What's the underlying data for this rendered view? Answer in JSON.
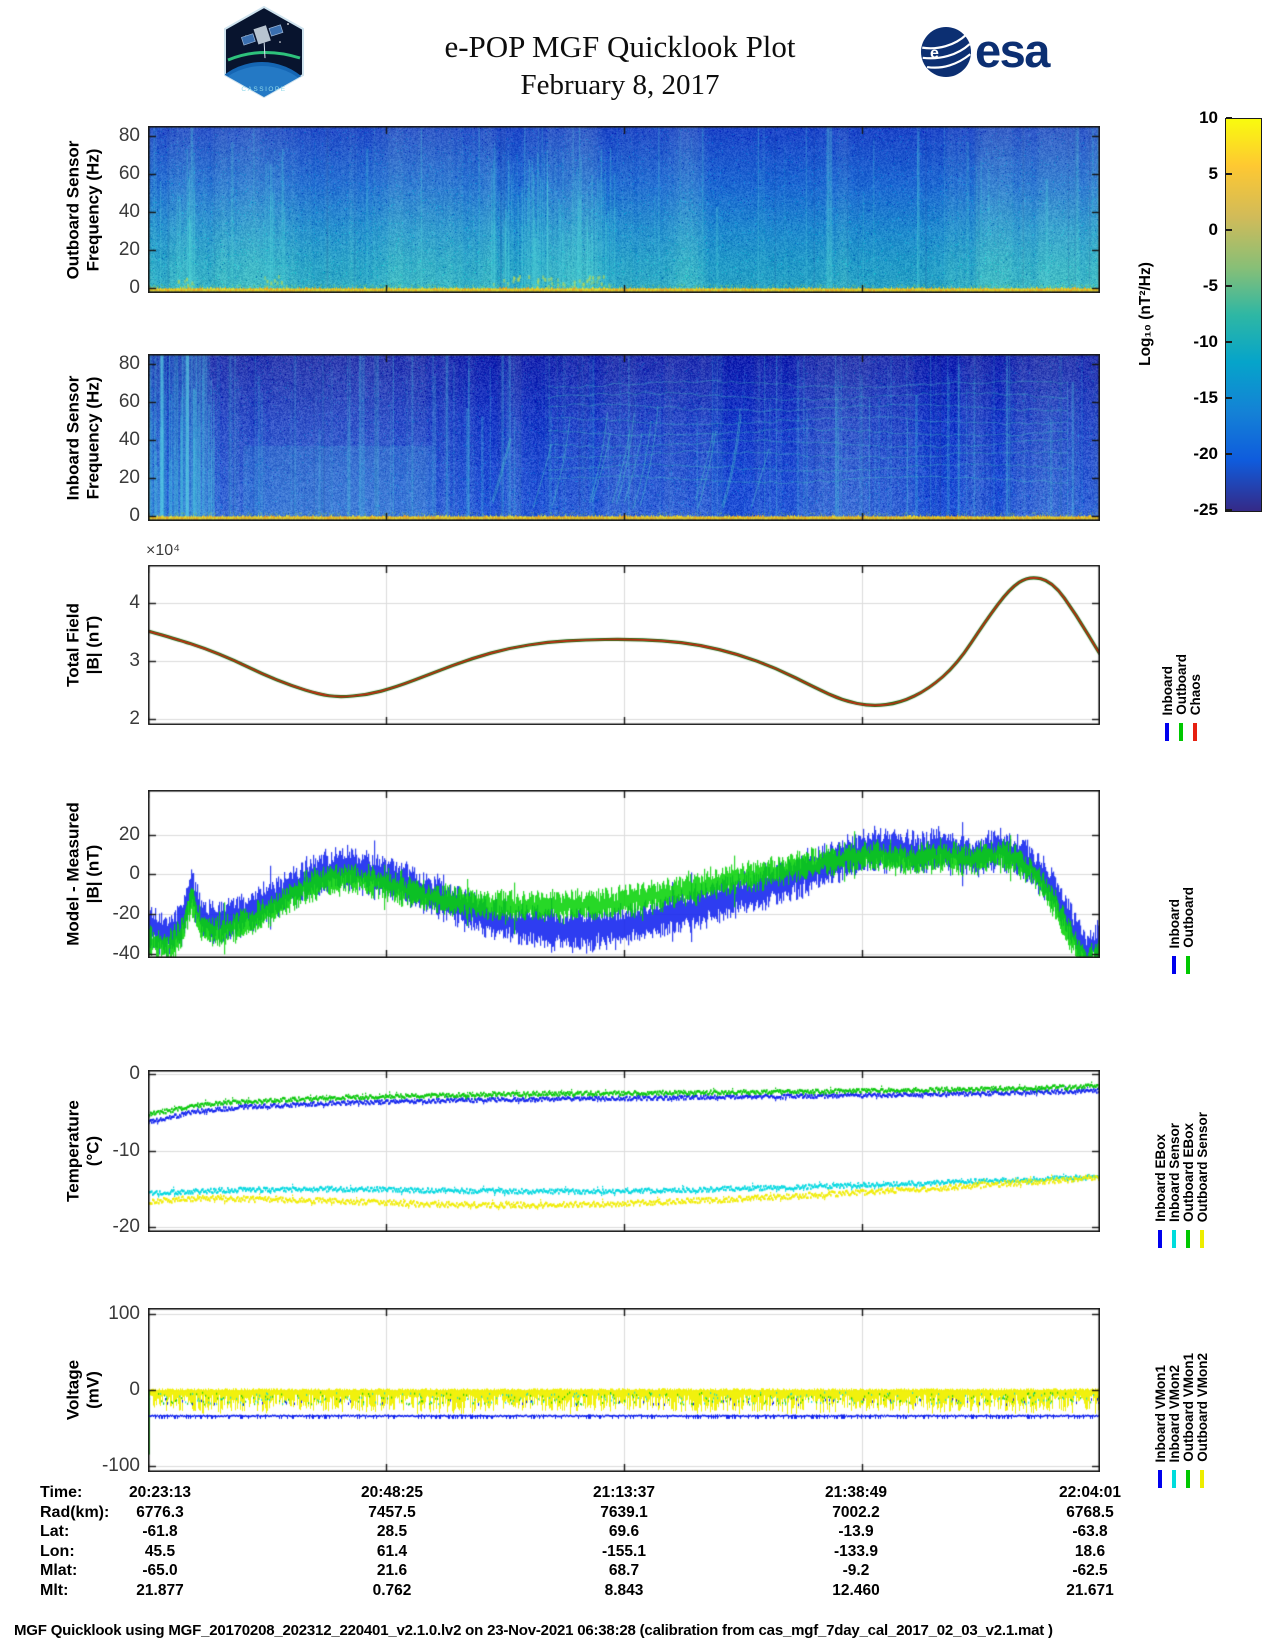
{
  "header": {
    "title": "e-POP MGF Quicklook Plot",
    "date": "February 8, 2017",
    "cassiope_badge": "CASSIOPE",
    "esa_logo_text": "esa"
  },
  "colorbar": {
    "label": "Log₁₀ (nT²/Hz)",
    "tick_labels": [
      "10",
      "5",
      "0",
      "-5",
      "-10",
      "-15",
      "-20",
      "-25"
    ],
    "tick_values": [
      10,
      5,
      0,
      -5,
      -10,
      -15,
      -20,
      -25
    ],
    "clim": [
      -25,
      10
    ],
    "gradient_stops": [
      [
        0,
        "#352a87"
      ],
      [
        0.13,
        "#0f5cdd"
      ],
      [
        0.25,
        "#1481d6"
      ],
      [
        0.38,
        "#06a4ca"
      ],
      [
        0.5,
        "#2eb7a4"
      ],
      [
        0.62,
        "#87bf77"
      ],
      [
        0.75,
        "#d1bb59"
      ],
      [
        0.88,
        "#fec832"
      ],
      [
        1,
        "#f9fb0e"
      ]
    ]
  },
  "x_axis": {
    "tick_labels": [
      "20:23:13",
      "20:48:25",
      "21:13:37",
      "21:38:49",
      "22:04:01"
    ]
  },
  "chart_data": [
    {
      "id": "outboard-spectrogram",
      "type": "heatmap",
      "ylabel_lines": [
        "Outboard Sensor",
        "Frequency (Hz)"
      ],
      "yticks": [
        0,
        20,
        40,
        60,
        80
      ],
      "ytick_labels": [
        "0",
        "20",
        "40",
        "60",
        "80"
      ],
      "ylim": [
        -2.5,
        85
      ],
      "clim": [
        -25,
        10
      ],
      "value_label": "Log₁₀ (nT²/Hz)",
      "description": "Broadband blue-teal noise floor near -12 to -8 log(nT²/Hz); intense yellow-orange band below ~3 Hz for whole pass; burst clusters near 20:25, 20:29 and 21:05-21:15",
      "render": {
        "gradient": [
          [
            0,
            "#2b52c8"
          ],
          [
            0.35,
            "#2c76d2"
          ],
          [
            0.62,
            "#2e97ce"
          ],
          [
            0.82,
            "#31a8c8"
          ],
          [
            1,
            "#37b1c4"
          ]
        ],
        "noise": 20,
        "streaks": 60,
        "streak_color": "#55d8da",
        "bursts": [
          [
            0.03,
            0.05
          ],
          [
            0.12,
            0.145
          ],
          [
            0.36,
            0.49
          ]
        ],
        "arcs": false,
        "left_bright": false,
        "patches": [],
        "bottom_band": [
          "#f0d21e",
          "#ef9f1f",
          "#e3e23a"
        ]
      }
    },
    {
      "id": "inboard-spectrogram",
      "type": "heatmap",
      "ylabel_lines": [
        "Inboard Sensor",
        "Frequency (Hz)"
      ],
      "yticks": [
        0,
        20,
        40,
        60,
        80
      ],
      "ytick_labels": [
        "0",
        "20",
        "40",
        "60",
        "80"
      ],
      "ylim": [
        -2.5,
        85
      ],
      "clim": [
        -25,
        10
      ],
      "value_label": "Log₁₀ (nT²/Hz)",
      "description": "Darker blue background near -18; dense vertical interference streaks; bright cyan columns at pass start; rising arc structures 21:00-21:50; yellow band below ~3 Hz",
      "render": {
        "gradient": [
          [
            0,
            "#2330b0"
          ],
          [
            0.4,
            "#2646c8"
          ],
          [
            0.72,
            "#2b57d2"
          ],
          [
            1,
            "#3163d8"
          ]
        ],
        "noise": 26,
        "streaks": 150,
        "streak_color": "#4fd2de",
        "bursts": [
          [
            0.0,
            0.07
          ]
        ],
        "arcs": true,
        "left_bright": true,
        "patches": [
          [
            0.1,
            0.3,
            0.55,
            0.97,
            0.15
          ]
        ],
        "bottom_band": [
          "#f0d21e",
          "#ef9f1f",
          "#e3e23a"
        ]
      }
    },
    {
      "id": "total-field",
      "type": "line",
      "ylabel_lines": [
        "Total Field",
        "|B| (nT)"
      ],
      "yticks": [
        2,
        3,
        4
      ],
      "ytick_labels": [
        "2",
        "3",
        "4"
      ],
      "ylim": [
        1.9,
        4.66
      ],
      "exponent_label": "×10⁴",
      "legend": [
        {
          "label": "Inboard",
          "color": "#0000ee"
        },
        {
          "label": "Outboard",
          "color": "#00c800"
        },
        {
          "label": "Chaos",
          "color": "#e62010"
        }
      ],
      "note": "Inboard, Outboard and CHAOS model curves overlap",
      "x": [
        0,
        0.03,
        0.06,
        0.09,
        0.12,
        0.15,
        0.18,
        0.2,
        0.23,
        0.26,
        0.3,
        0.34,
        0.38,
        0.42,
        0.46,
        0.5,
        0.54,
        0.58,
        0.62,
        0.66,
        0.7,
        0.73,
        0.76,
        0.79,
        0.82,
        0.85,
        0.88,
        0.905,
        0.925,
        0.95,
        0.975,
        1.0
      ],
      "values_1e4": [
        3.52,
        3.38,
        3.22,
        3.02,
        2.78,
        2.58,
        2.43,
        2.38,
        2.42,
        2.55,
        2.8,
        3.05,
        3.23,
        3.33,
        3.37,
        3.38,
        3.36,
        3.28,
        3.12,
        2.88,
        2.55,
        2.32,
        2.22,
        2.28,
        2.52,
        2.95,
        3.7,
        4.25,
        4.47,
        4.38,
        3.8,
        3.12
      ]
    },
    {
      "id": "model-minus-measured",
      "type": "band",
      "ylabel_lines": [
        "Model - Measured",
        "|B| (nT)"
      ],
      "yticks": [
        -40,
        -20,
        0,
        20
      ],
      "ytick_labels": [
        "-40",
        "-20",
        "0",
        "20"
      ],
      "ylim": [
        -42,
        42.5
      ],
      "legend": [
        {
          "label": "Inboard",
          "color": "#0000ee"
        },
        {
          "label": "Outboard",
          "color": "#00c800"
        }
      ],
      "x": [
        0,
        0.02,
        0.035,
        0.045,
        0.055,
        0.07,
        0.09,
        0.11,
        0.13,
        0.15,
        0.17,
        0.19,
        0.21,
        0.24,
        0.27,
        0.3,
        0.33,
        0.36,
        0.4,
        0.44,
        0.48,
        0.52,
        0.55,
        0.58,
        0.61,
        0.64,
        0.67,
        0.7,
        0.73,
        0.76,
        0.79,
        0.81,
        0.83,
        0.85,
        0.87,
        0.89,
        0.91,
        0.93,
        0.95,
        0.97,
        0.985,
        1.0
      ],
      "series": [
        {
          "name": "Inboard",
          "color": "#1022ee",
          "halfwidth": 7,
          "center": [
            -27,
            -31,
            -24,
            -6,
            -20,
            -25,
            -22,
            -18,
            -13,
            -7,
            -2,
            2,
            3,
            0,
            -5,
            -11,
            -17,
            -22,
            -26,
            -28,
            -27,
            -24,
            -20,
            -16,
            -12,
            -8,
            -3,
            2,
            8,
            12,
            12,
            10,
            13,
            11,
            9,
            13,
            10,
            4,
            -8,
            -26,
            -38,
            -34
          ]
        },
        {
          "name": "Outboard",
          "color": "#08d208",
          "halfwidth": 5,
          "center": [
            -33,
            -37,
            -30,
            -12,
            -26,
            -30,
            -27,
            -23,
            -17,
            -11,
            -6,
            -2,
            -2,
            -4,
            -8,
            -12,
            -14,
            -15,
            -16,
            -16,
            -15,
            -12,
            -9,
            -6,
            -3,
            0,
            3,
            6,
            8,
            9,
            8,
            7,
            9,
            8,
            8,
            10,
            7,
            1,
            -14,
            -32,
            -45,
            -41
          ]
        }
      ]
    },
    {
      "id": "temperature",
      "type": "multi-line",
      "ylabel_lines": [
        "Temperature",
        "(°C)"
      ],
      "yticks": [
        -20,
        -10,
        0
      ],
      "ytick_labels": [
        "-20",
        "-10",
        "0"
      ],
      "ylim": [
        -20.6,
        0.5
      ],
      "legend": [
        {
          "label": "Inboard EBox",
          "color": "#0000ee"
        },
        {
          "label": "Inboard Sensor",
          "color": "#00dcdc"
        },
        {
          "label": "Outboard EBox",
          "color": "#00c800"
        },
        {
          "label": "Outboard Sensor",
          "color": "#eded00"
        }
      ],
      "x": [
        0,
        0.05,
        0.1,
        0.2,
        0.3,
        0.4,
        0.5,
        0.6,
        0.7,
        0.8,
        0.9,
        1.0
      ],
      "series": [
        {
          "name": "Inboard EBox",
          "color": "#1022ee",
          "jitter": 0.25,
          "values": [
            -6.3,
            -4.9,
            -4.3,
            -3.8,
            -3.5,
            -3.3,
            -3.2,
            -3.0,
            -2.9,
            -2.7,
            -2.5,
            -2.2
          ]
        },
        {
          "name": "Inboard Sensor",
          "color": "#00d8e0",
          "jitter": 0.3,
          "values": [
            -15.6,
            -15.3,
            -15.1,
            -15.0,
            -15.2,
            -15.3,
            -15.3,
            -15.0,
            -14.7,
            -14.3,
            -13.9,
            -13.4
          ]
        },
        {
          "name": "Outboard EBox",
          "color": "#08c808",
          "jitter": 0.25,
          "values": [
            -5.3,
            -4.1,
            -3.6,
            -3.1,
            -2.8,
            -2.6,
            -2.5,
            -2.4,
            -2.3,
            -2.1,
            -1.9,
            -1.6
          ]
        },
        {
          "name": "Outboard Sensor",
          "color": "#f0ec00",
          "jitter": 0.35,
          "values": [
            -16.6,
            -16.2,
            -16.3,
            -16.6,
            -17.0,
            -17.1,
            -16.9,
            -16.4,
            -15.8,
            -15.1,
            -14.3,
            -13.5
          ]
        }
      ]
    },
    {
      "id": "voltage",
      "type": "noise",
      "ylabel_lines": [
        "Voltage",
        "(mV)"
      ],
      "yticks": [
        -100,
        0,
        100
      ],
      "ytick_labels": [
        "-100",
        "0",
        "100"
      ],
      "ylim": [
        -108,
        108
      ],
      "legend": [
        {
          "label": "Inboard VMon1",
          "color": "#0000ee"
        },
        {
          "label": "Inboard VMon2",
          "color": "#00dcdc"
        },
        {
          "label": "Outboard VMon1",
          "color": "#00c800"
        },
        {
          "label": "Outboard VMon2",
          "color": "#eded00"
        }
      ],
      "series": [
        {
          "name": "Inboard VMon1",
          "color": "#1022ee",
          "style": "line_noise",
          "level": -33,
          "noise_depth": 5
        },
        {
          "name": "Inboard VMon2",
          "color": "#00d8e0",
          "style": "specks",
          "range": [
            -2,
            -18
          ]
        },
        {
          "name": "Outboard VMon1",
          "color": "#08c808",
          "style": "specks",
          "range": [
            -2,
            -18
          ],
          "startup_spike": [
            0,
            -85
          ]
        },
        {
          "name": "Outboard VMon2",
          "color": "#f0f000",
          "style": "band",
          "top": 2,
          "bottom": -30
        }
      ]
    }
  ],
  "table": {
    "rows": [
      {
        "label": "Time:",
        "values": [
          "20:23:13",
          "20:48:25",
          "21:13:37",
          "21:38:49",
          "22:04:01"
        ]
      },
      {
        "label": "Rad(km):",
        "values": [
          "6776.3",
          "7457.5",
          "7639.1",
          "7002.2",
          "6768.5"
        ]
      },
      {
        "label": "Lat:",
        "values": [
          "-61.8",
          "28.5",
          "69.6",
          "-13.9",
          "-63.8"
        ]
      },
      {
        "label": "Lon:",
        "values": [
          "45.5",
          "61.4",
          "-155.1",
          "-133.9",
          "18.6"
        ]
      },
      {
        "label": "Mlat:",
        "values": [
          "-65.0",
          "21.6",
          "68.7",
          "-9.2",
          "-62.5"
        ]
      },
      {
        "label": "Mlt:",
        "values": [
          "21.877",
          "0.762",
          "8.843",
          "12.460",
          "21.671"
        ]
      }
    ]
  },
  "footer": "MGF Quicklook using MGF_20170208_202312_220401_v2.1.0.lv2 on 23-Nov-2021 06:38:28 (calibration from cas_mgf_7day_cal_2017_02_03_v2.1.mat )"
}
